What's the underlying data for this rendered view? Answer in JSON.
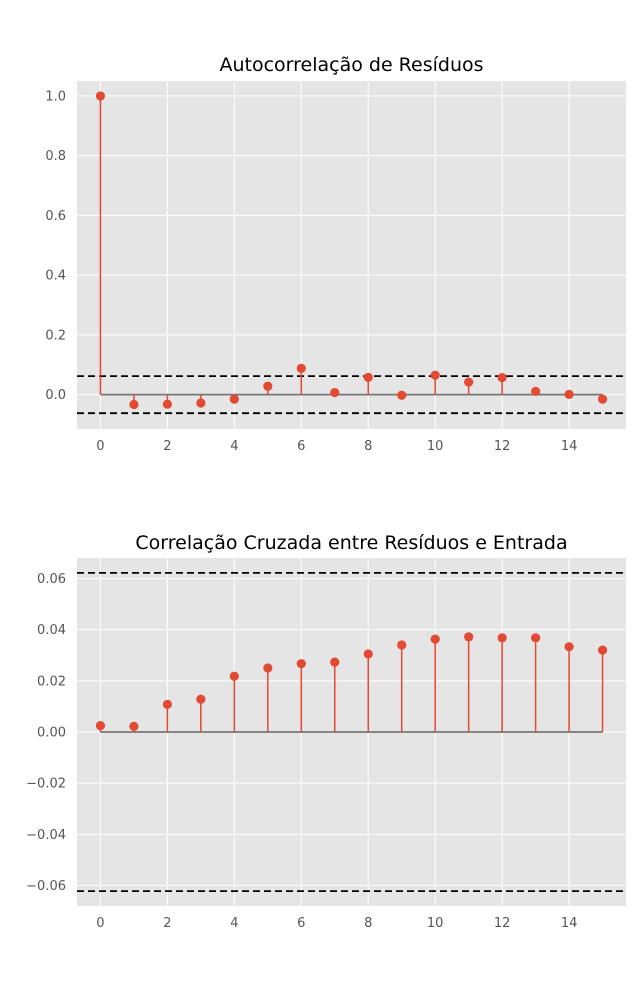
{
  "chart_data": [
    {
      "type": "stem",
      "title": "Autocorrelação de Resíduos",
      "xlabel": "",
      "ylabel": "",
      "x": [
        0,
        1,
        2,
        3,
        4,
        5,
        6,
        7,
        8,
        9,
        10,
        11,
        12,
        13,
        14,
        15
      ],
      "values": [
        1.0,
        -0.033,
        -0.032,
        -0.028,
        -0.015,
        0.028,
        0.088,
        0.007,
        0.058,
        -0.002,
        0.065,
        0.042,
        0.057,
        0.011,
        0.001,
        -0.015
      ],
      "xlim": [
        -0.7,
        15.7
      ],
      "ylim": [
        -0.115,
        1.05
      ],
      "xticks": [
        0,
        2,
        4,
        6,
        8,
        10,
        12,
        14
      ],
      "xtick_labels": [
        "0",
        "2",
        "4",
        "6",
        "8",
        "10",
        "12",
        "14"
      ],
      "yticks": [
        1.0,
        0.8,
        0.6,
        0.4,
        0.2,
        0.0
      ],
      "ytick_labels": [
        "1.0",
        "0.8",
        "0.6",
        "0.4",
        "0.2",
        "0.0"
      ],
      "confidence_bounds": [
        0.062,
        -0.062
      ],
      "baseline": 0,
      "grid": true,
      "colors": {
        "marker": "#e24a33",
        "stem": "#e24a33",
        "baseline": "#777777",
        "bounds": "#000000",
        "background": "#e5e5e5"
      }
    },
    {
      "type": "stem",
      "title": "Correlação Cruzada entre Resíduos e Entrada",
      "xlabel": "",
      "ylabel": "",
      "x": [
        0,
        1,
        2,
        3,
        4,
        5,
        6,
        7,
        8,
        9,
        10,
        11,
        12,
        13,
        14,
        15
      ],
      "values": [
        0.0025,
        0.0022,
        0.0108,
        0.0128,
        0.0218,
        0.025,
        0.0267,
        0.0273,
        0.0305,
        0.034,
        0.0363,
        0.0372,
        0.0368,
        0.0368,
        0.0333,
        0.032
      ],
      "xlim": [
        -0.7,
        15.7
      ],
      "ylim": [
        -0.068,
        0.068
      ],
      "xticks": [
        0,
        2,
        4,
        6,
        8,
        10,
        12,
        14
      ],
      "xtick_labels": [
        "0",
        "2",
        "4",
        "6",
        "8",
        "10",
        "12",
        "14"
      ],
      "yticks": [
        0.06,
        0.04,
        0.02,
        0.0,
        -0.02,
        -0.04,
        -0.06
      ],
      "ytick_labels": [
        "0.06",
        "0.04",
        "0.02",
        "0.00",
        "−0.02",
        "−0.04",
        "−0.06"
      ],
      "confidence_bounds": [
        0.0622,
        -0.0622
      ],
      "baseline": 0,
      "grid": true,
      "colors": {
        "marker": "#e24a33",
        "stem": "#e24a33",
        "baseline": "#777777",
        "bounds": "#000000",
        "background": "#e5e5e5"
      }
    }
  ]
}
